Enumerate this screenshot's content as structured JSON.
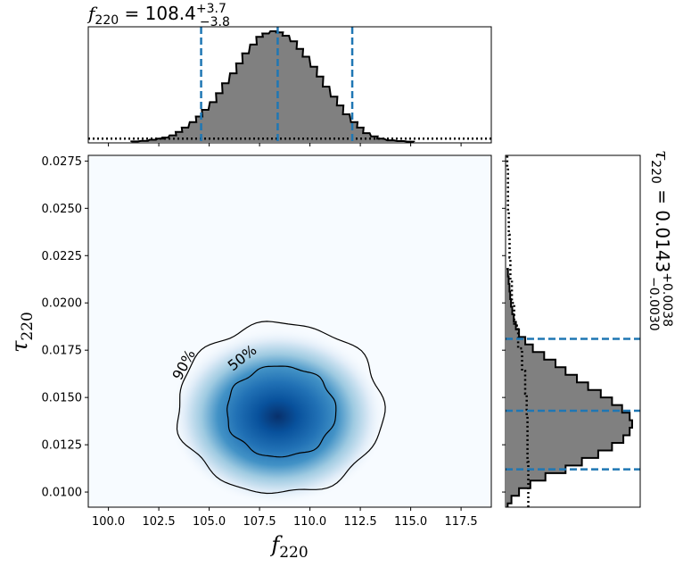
{
  "chart_data": [
    {
      "type": "heatmap",
      "xlabel": "f",
      "xlabel_sub": "220",
      "ylabel": "τ",
      "ylabel_sub": "220",
      "xlim": [
        99.0,
        119.0
      ],
      "ylim": [
        0.0092,
        0.0278
      ],
      "xticks": [
        "100.0",
        "102.5",
        "105.0",
        "107.5",
        "110.0",
        "112.5",
        "115.0",
        "117.5"
      ],
      "yticks": [
        "0.0100",
        "0.0125",
        "0.0150",
        "0.0175",
        "0.0200",
        "0.0225",
        "0.0250",
        "0.0275"
      ],
      "colormap": "Blues",
      "peak": {
        "x": 108.4,
        "y": 0.014
      },
      "contours": [
        {
          "label": "50%",
          "x_range": [
            105.8,
            111.2
          ],
          "y_range": [
            0.0119,
            0.0167
          ]
        },
        {
          "label": "90%",
          "x_range": [
            103.3,
            113.5
          ],
          "y_range": [
            0.01,
            0.019
          ]
        }
      ]
    },
    {
      "type": "bar",
      "subtype": "step-histogram",
      "title_prefix": "f",
      "title_sub": "220",
      "title_value": " = 108.4",
      "title_sup": "+3.7",
      "title_low": "−3.8",
      "variable": "f220",
      "median": 108.4,
      "lower": 104.6,
      "upper": 112.1,
      "fill_color": "#808080",
      "line_color": "#1f77b4",
      "series": [
        {
          "x": [
            101.3,
            101.8,
            102.2,
            102.6,
            102.8,
            103.2,
            103.5,
            103.8,
            104.2,
            104.5,
            104.8,
            105.2,
            105.5,
            105.8,
            106.2,
            106.5,
            106.8,
            107.2,
            107.5,
            107.8,
            108.2,
            108.5,
            108.8,
            109.2,
            109.5,
            109.8,
            110.2,
            110.5,
            110.8,
            111.2,
            111.5,
            111.8,
            112.2,
            112.5,
            112.8,
            113.2,
            113.5,
            114.0,
            114.5,
            115.0
          ],
          "values": [
            0.005,
            0.01,
            0.02,
            0.03,
            0.04,
            0.06,
            0.09,
            0.13,
            0.18,
            0.23,
            0.29,
            0.36,
            0.44,
            0.53,
            0.62,
            0.71,
            0.8,
            0.88,
            0.95,
            0.98,
            1.0,
            0.99,
            0.96,
            0.91,
            0.84,
            0.77,
            0.68,
            0.59,
            0.5,
            0.41,
            0.33,
            0.25,
            0.18,
            0.13,
            0.08,
            0.05,
            0.03,
            0.015,
            0.008,
            0.003
          ]
        },
        {
          "name": "prior",
          "x": [
            99.0,
            119.0
          ],
          "values": [
            0.03,
            0.03
          ]
        }
      ]
    },
    {
      "type": "bar",
      "subtype": "step-histogram",
      "orientation": "horizontal",
      "title_prefix": "τ",
      "title_sub": "220",
      "title_value": " = 0.0143",
      "title_sup": "+0.0038",
      "title_low": "−0.0030",
      "variable": "tau220",
      "median": 0.0143,
      "lower": 0.0112,
      "upper": 0.0181,
      "series": [
        {
          "y": [
            0.0092,
            0.0096,
            0.01,
            0.0104,
            0.0108,
            0.0112,
            0.0116,
            0.012,
            0.0124,
            0.0128,
            0.0132,
            0.0136,
            0.014,
            0.0144,
            0.0148,
            0.0152,
            0.0156,
            0.016,
            0.0164,
            0.0168,
            0.0172,
            0.0176,
            0.018,
            0.0184,
            0.0188,
            0.0192,
            0.0196,
            0.02,
            0.0204,
            0.0208,
            0.0212,
            0.0216
          ],
          "values": [
            0.01,
            0.04,
            0.1,
            0.19,
            0.31,
            0.47,
            0.6,
            0.73,
            0.84,
            0.93,
            0.98,
            1.0,
            0.98,
            0.92,
            0.84,
            0.75,
            0.65,
            0.56,
            0.47,
            0.39,
            0.3,
            0.21,
            0.15,
            0.1,
            0.075,
            0.058,
            0.046,
            0.036,
            0.03,
            0.024,
            0.018,
            0.012
          ]
        },
        {
          "name": "prior",
          "y": [
            0.0092,
            0.0104,
            0.0116,
            0.0128,
            0.014,
            0.0152,
            0.0164,
            0.0176,
            0.0188,
            0.02,
            0.0212,
            0.0224,
            0.0236,
            0.0248,
            0.026,
            0.0272
          ],
          "values": [
            0.28,
            0.28,
            0.27,
            0.27,
            0.26,
            0.24,
            0.2,
            0.15,
            0.1,
            0.07,
            0.05,
            0.04,
            0.03,
            0.02,
            0.02,
            0.01
          ]
        }
      ]
    }
  ]
}
